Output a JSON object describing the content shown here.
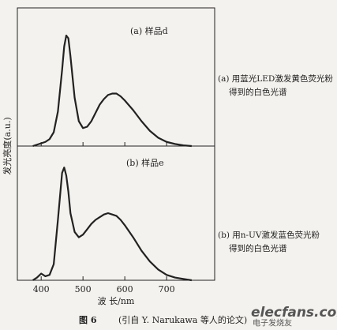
{
  "figure": {
    "caption_label": "图 6",
    "caption": "(引自 Y. Narukawa 等人的论文)",
    "watermark": [
      "elecfans.com",
      "电子发烧友"
    ]
  },
  "chart_data": [
    {
      "type": "line",
      "title": "(a) 样品d",
      "annotation": [
        "(a) 用蓝光LED激发黄色荧光粉",
        "得到的白色光谱"
      ],
      "ylabel": "发光亮度(a.u.)",
      "xlim": [
        343,
        815
      ],
      "xticks": [
        400,
        500,
        600,
        700
      ],
      "ylim": [
        0,
        1
      ],
      "color": "#222",
      "x": [
        380,
        390,
        400,
        410,
        420,
        430,
        440,
        450,
        455,
        460,
        465,
        470,
        480,
        490,
        500,
        510,
        520,
        530,
        540,
        550,
        560,
        570,
        580,
        590,
        600,
        620,
        640,
        660,
        680,
        700,
        720,
        740,
        760
      ],
      "values": [
        0,
        0.01,
        0.02,
        0.03,
        0.05,
        0.1,
        0.25,
        0.55,
        0.72,
        0.8,
        0.78,
        0.65,
        0.35,
        0.18,
        0.13,
        0.14,
        0.18,
        0.24,
        0.3,
        0.34,
        0.37,
        0.38,
        0.38,
        0.36,
        0.33,
        0.26,
        0.18,
        0.11,
        0.06,
        0.03,
        0.015,
        0.005,
        0
      ]
    },
    {
      "type": "line",
      "title": "(b) 样品e",
      "annotation": [
        "(b) 用n-UV激发蓝色荧光粉",
        "得到的白色光谱"
      ],
      "xlabel": "波 长/nm",
      "xlim": [
        343,
        815
      ],
      "xticks": [
        400,
        500,
        600,
        700
      ],
      "ylim": [
        0,
        1
      ],
      "color": "#222",
      "x": [
        380,
        390,
        400,
        410,
        420,
        430,
        440,
        450,
        455,
        460,
        465,
        470,
        480,
        490,
        500,
        510,
        520,
        530,
        540,
        550,
        560,
        570,
        580,
        590,
        600,
        620,
        640,
        660,
        680,
        700,
        720,
        740,
        760
      ],
      "values": [
        0,
        0.02,
        0.05,
        0.03,
        0.04,
        0.12,
        0.45,
        0.8,
        0.84,
        0.78,
        0.66,
        0.5,
        0.36,
        0.32,
        0.34,
        0.38,
        0.42,
        0.45,
        0.47,
        0.49,
        0.5,
        0.49,
        0.48,
        0.45,
        0.41,
        0.32,
        0.22,
        0.14,
        0.08,
        0.04,
        0.02,
        0.01,
        0
      ]
    }
  ]
}
